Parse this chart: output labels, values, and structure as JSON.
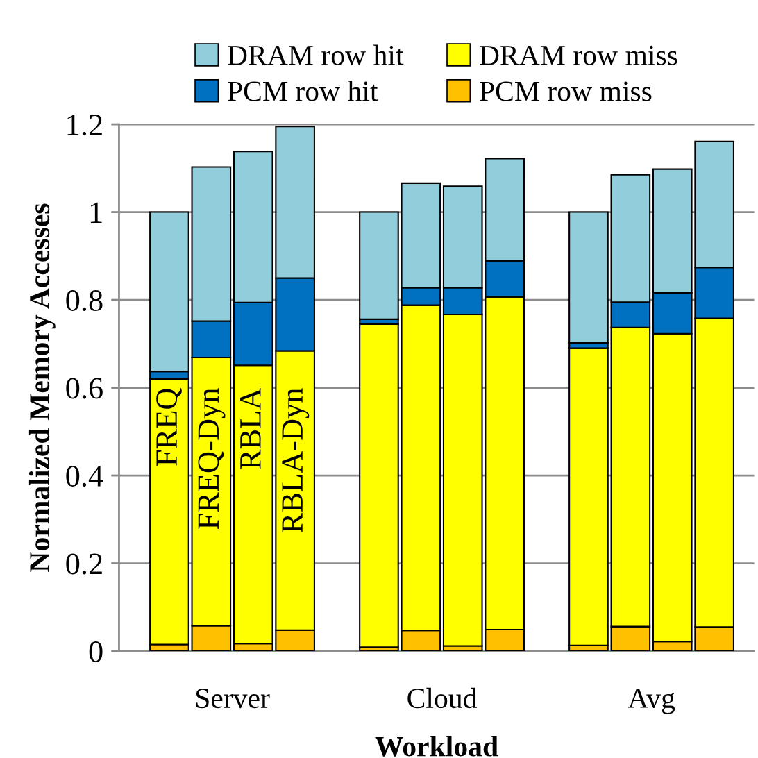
{
  "chart_data": {
    "type": "bar",
    "stacked": true,
    "xlabel": "Workload",
    "ylabel": "Normalized Memory Accesses",
    "categories": [
      "FREQ",
      "FREQ-Dyn",
      "RBLA",
      "RBLA-Dyn",
      null,
      null,
      null,
      null,
      null,
      null,
      null,
      null,
      null,
      null
    ],
    "series": [
      {
        "name": "PCM row miss",
        "color": "#ffc000",
        "values": [
          0.015,
          0.058,
          0.017,
          0.048,
          null,
          0.009,
          0.047,
          0.012,
          0.049,
          null,
          0.013,
          0.056,
          0.022,
          0.055
        ]
      },
      {
        "name": "DRAM row miss",
        "color": "#ffff00",
        "values": [
          0.605,
          0.611,
          0.634,
          0.636,
          null,
          0.736,
          0.741,
          0.755,
          0.758,
          null,
          0.677,
          0.681,
          0.701,
          0.703
        ]
      },
      {
        "name": "PCM row hit",
        "color": "#0070c0",
        "values": [
          0.017,
          0.083,
          0.143,
          0.166,
          null,
          0.011,
          0.04,
          0.061,
          0.082,
          null,
          0.012,
          0.058,
          0.093,
          0.116
        ]
      },
      {
        "name": "DRAM row hit",
        "color": "#92cddc",
        "values": [
          0.363,
          0.351,
          0.344,
          0.345,
          null,
          0.244,
          0.238,
          0.231,
          0.233,
          null,
          0.298,
          0.29,
          0.282,
          0.287
        ]
      }
    ],
    "annotations": [
      "Server",
      "Cloud",
      "Avg"
    ],
    "ylim": [
      0,
      1.2
    ],
    "yticks": [
      0,
      {
        "value": 0.2,
        "label": "0.2"
      },
      {
        "value": 0.4,
        "label": "0.4"
      },
      {
        "value": 0.6,
        "label": "0.6"
      },
      {
        "value": 0.8,
        "label": "0.8"
      },
      1,
      {
        "value": 1.2,
        "label": "1.2"
      }
    ],
    "grid": "y",
    "legend": "top"
  }
}
